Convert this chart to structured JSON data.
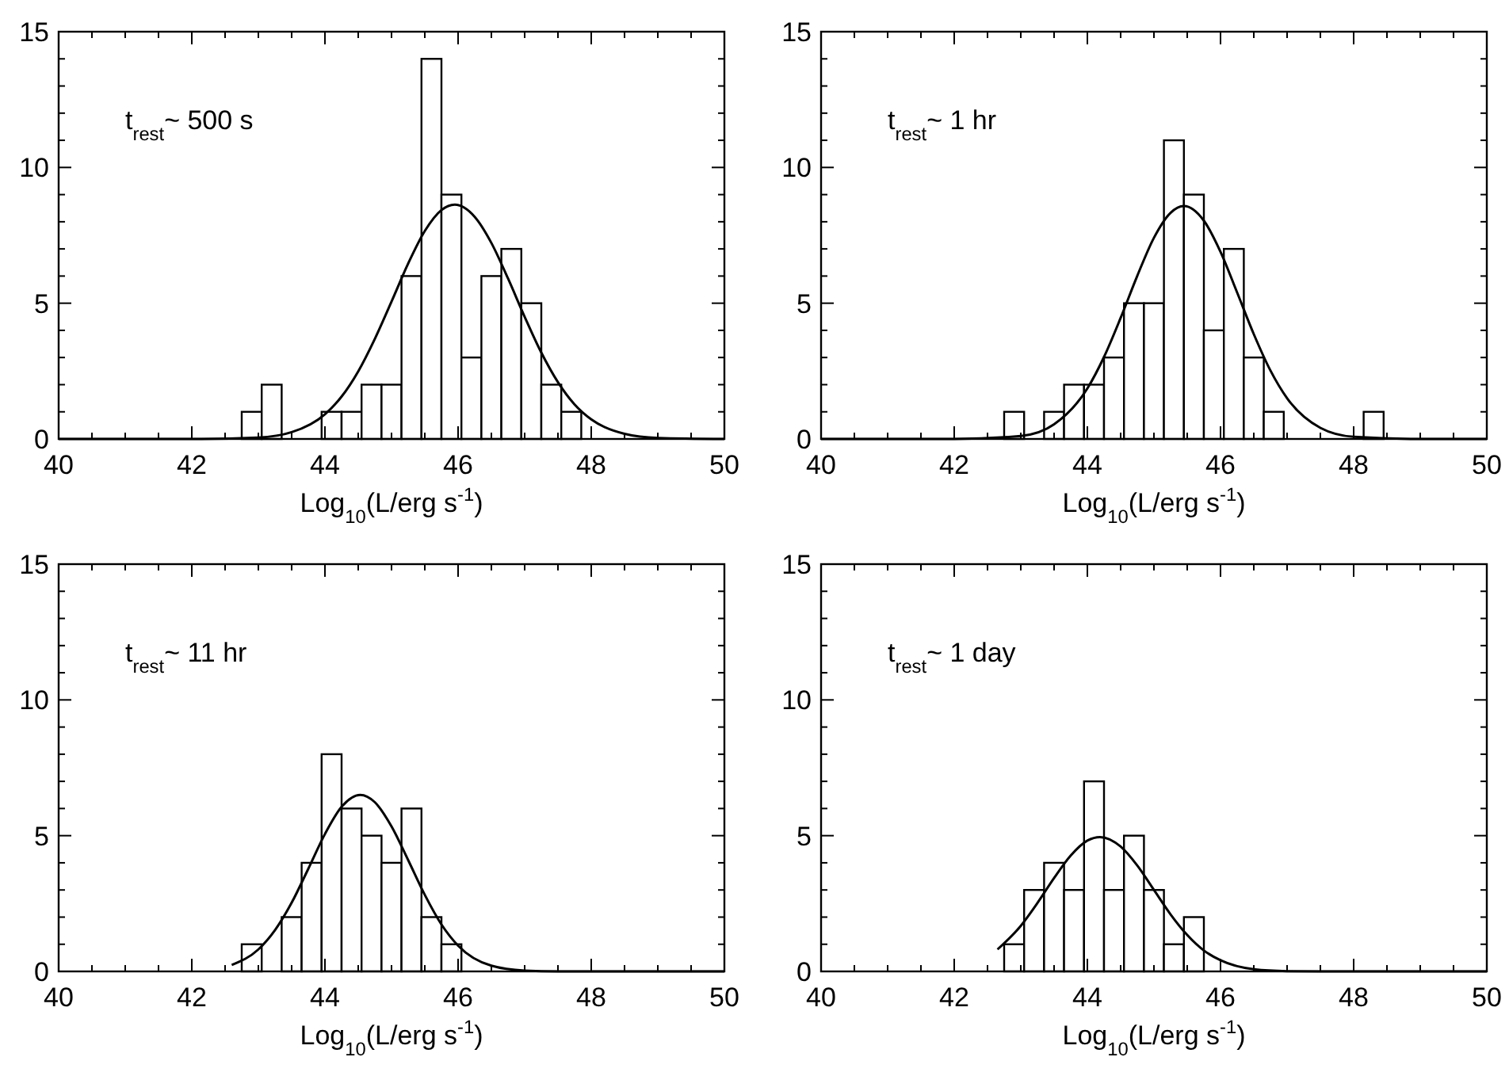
{
  "chart_data": [
    {
      "type": "histogram",
      "xlabel": "Log$_{10}$(L/erg s$^{-1}$)",
      "annotations": [
        "t$_{rest}$~ 500 s"
      ],
      "bins": [
        42.75,
        43.05,
        43.35,
        43.65,
        43.95,
        44.25,
        44.55,
        44.85,
        45.15,
        45.45,
        45.75,
        46.05,
        46.35,
        46.65,
        46.95,
        47.25,
        47.55,
        47.85
      ],
      "values": [
        1,
        2,
        0,
        0,
        1,
        1,
        2,
        2,
        6,
        14,
        9,
        3,
        6,
        7,
        5,
        2,
        1
      ],
      "series": [
        {
          "type": "line",
          "color": "#000000",
          "x": [
            40,
            42,
            43,
            43.5,
            44,
            44.25,
            44.5,
            44.75,
            45,
            45.25,
            45.5,
            45.75,
            45.95,
            46.25,
            46.5,
            46.75,
            47,
            47.25,
            47.5,
            47.75,
            48,
            48.5,
            49,
            50
          ],
          "values": [
            0,
            0,
            0.05,
            0.25,
            0.91,
            1.56,
            2.49,
            3.69,
            5.06,
            6.46,
            7.66,
            8.43,
            8.63,
            8.18,
            7.22,
            5.91,
            4.5,
            3.18,
            2.09,
            1.27,
            0.72,
            0.19,
            0.04,
            0
          ]
        }
      ],
      "xlim": [
        40,
        50
      ],
      "ylim": [
        0,
        15
      ],
      "xticks": [
        40,
        {
          "value": 40.5,
          "label": null
        },
        {
          "value": 41,
          "label": null
        },
        {
          "value": 41.5,
          "label": null
        },
        42,
        {
          "value": 42.5,
          "label": null
        },
        {
          "value": 43,
          "label": null
        },
        {
          "value": 43.5,
          "label": null
        },
        44,
        {
          "value": 44.5,
          "label": null
        },
        {
          "value": 45,
          "label": null
        },
        {
          "value": 45.5,
          "label": null
        },
        46,
        {
          "value": 46.5,
          "label": null
        },
        {
          "value": 47,
          "label": null
        },
        {
          "value": 47.5,
          "label": null
        },
        48,
        {
          "value": 48.5,
          "label": null
        },
        {
          "value": 49,
          "label": null
        },
        {
          "value": 49.5,
          "label": null
        },
        50
      ],
      "yticks": [
        0,
        {
          "value": 1,
          "label": null
        },
        {
          "value": 2,
          "label": null
        },
        {
          "value": 3,
          "label": null
        },
        {
          "value": 4,
          "label": null
        },
        5,
        {
          "value": 6,
          "label": null
        },
        {
          "value": 7,
          "label": null
        },
        {
          "value": 8,
          "label": null
        },
        {
          "value": 9,
          "label": null
        },
        10,
        {
          "value": 11,
          "label": null
        },
        {
          "value": 12,
          "label": null
        },
        {
          "value": 13,
          "label": null
        },
        {
          "value": 14,
          "label": null
        },
        15
      ]
    },
    {
      "type": "histogram",
      "xlabel": "Log$_{10}$(L/erg s$^{-1}$)",
      "annotations": [
        "t$_{rest}$~ 1 hr"
      ],
      "bins": [
        42.75,
        43.05,
        43.35,
        43.65,
        43.95,
        44.25,
        44.55,
        44.85,
        45.15,
        45.45,
        45.75,
        46.05,
        46.35,
        46.65,
        46.95,
        47.25,
        47.55,
        47.85,
        48.15,
        48.45
      ],
      "values": [
        1,
        0,
        1,
        2,
        2,
        3,
        5,
        5,
        11,
        9,
        4,
        7,
        3,
        1,
        0,
        0,
        0,
        0,
        1
      ],
      "series": [
        {
          "type": "line",
          "color": "#000000",
          "x": [
            40,
            42,
            43,
            43.5,
            44,
            44.25,
            44.5,
            44.75,
            45,
            45.25,
            45.45,
            45.75,
            46,
            46.25,
            46.5,
            46.75,
            47,
            47.5,
            48,
            49,
            50
          ],
          "values": [
            0,
            0,
            0.11,
            0.54,
            1.86,
            3.02,
            4.46,
            6.01,
            7.41,
            8.33,
            8.58,
            8.04,
            6.89,
            5.39,
            3.86,
            2.52,
            1.5,
            0.41,
            0.08,
            0,
            0
          ]
        }
      ],
      "xlim": [
        40,
        50
      ],
      "ylim": [
        0,
        15
      ],
      "xticks": [
        40,
        {
          "value": 40.5,
          "label": null
        },
        {
          "value": 41,
          "label": null
        },
        {
          "value": 41.5,
          "label": null
        },
        42,
        {
          "value": 42.5,
          "label": null
        },
        {
          "value": 43,
          "label": null
        },
        {
          "value": 43.5,
          "label": null
        },
        44,
        {
          "value": 44.5,
          "label": null
        },
        {
          "value": 45,
          "label": null
        },
        {
          "value": 45.5,
          "label": null
        },
        46,
        {
          "value": 46.5,
          "label": null
        },
        {
          "value": 47,
          "label": null
        },
        {
          "value": 47.5,
          "label": null
        },
        48,
        {
          "value": 48.5,
          "label": null
        },
        {
          "value": 49,
          "label": null
        },
        {
          "value": 49.5,
          "label": null
        },
        50
      ],
      "yticks": [
        0,
        {
          "value": 1,
          "label": null
        },
        {
          "value": 2,
          "label": null
        },
        {
          "value": 3,
          "label": null
        },
        {
          "value": 4,
          "label": null
        },
        5,
        {
          "value": 6,
          "label": null
        },
        {
          "value": 7,
          "label": null
        },
        {
          "value": 8,
          "label": null
        },
        {
          "value": 9,
          "label": null
        },
        10,
        {
          "value": 11,
          "label": null
        },
        {
          "value": 12,
          "label": null
        },
        {
          "value": 13,
          "label": null
        },
        {
          "value": 14,
          "label": null
        },
        15
      ]
    },
    {
      "type": "histogram",
      "xlabel": "Log$_{10}$(L/erg s$^{-1}$)",
      "annotations": [
        "t$_{rest}$~ 11 hr"
      ],
      "bins": [
        42.75,
        43.05,
        43.35,
        43.65,
        43.95,
        44.25,
        44.55,
        44.85,
        45.15,
        45.45,
        45.75,
        46.05
      ],
      "values": [
        1,
        0,
        2,
        4,
        8,
        6,
        5,
        4,
        6,
        2,
        1
      ],
      "series": [
        {
          "type": "line",
          "color": "#000000",
          "x": [
            42.6,
            43,
            43.25,
            43.5,
            43.75,
            44,
            44.25,
            44.53,
            44.75,
            45,
            45.25,
            45.5,
            45.75,
            46,
            46.5,
            47,
            47.5,
            48,
            49,
            50
          ],
          "values": [
            0.24,
            0.81,
            1.52,
            2.53,
            3.78,
            5.06,
            6.06,
            6.5,
            6.23,
            5.34,
            4.1,
            2.82,
            1.73,
            0.95,
            0.21,
            0.03,
            0,
            0,
            0,
            0
          ]
        }
      ],
      "xlim": [
        40,
        50
      ],
      "ylim": [
        0,
        15
      ],
      "xticks": [
        40,
        {
          "value": 40.5,
          "label": null
        },
        {
          "value": 41,
          "label": null
        },
        {
          "value": 41.5,
          "label": null
        },
        42,
        {
          "value": 42.5,
          "label": null
        },
        {
          "value": 43,
          "label": null
        },
        {
          "value": 43.5,
          "label": null
        },
        44,
        {
          "value": 44.5,
          "label": null
        },
        {
          "value": 45,
          "label": null
        },
        {
          "value": 45.5,
          "label": null
        },
        46,
        {
          "value": 46.5,
          "label": null
        },
        {
          "value": 47,
          "label": null
        },
        {
          "value": 47.5,
          "label": null
        },
        48,
        {
          "value": 48.5,
          "label": null
        },
        {
          "value": 49,
          "label": null
        },
        {
          "value": 49.5,
          "label": null
        },
        50
      ],
      "yticks": [
        0,
        {
          "value": 1,
          "label": null
        },
        {
          "value": 2,
          "label": null
        },
        {
          "value": 3,
          "label": null
        },
        {
          "value": 4,
          "label": null
        },
        5,
        {
          "value": 6,
          "label": null
        },
        {
          "value": 7,
          "label": null
        },
        {
          "value": 8,
          "label": null
        },
        {
          "value": 9,
          "label": null
        },
        10,
        {
          "value": 11,
          "label": null
        },
        {
          "value": 12,
          "label": null
        },
        {
          "value": 13,
          "label": null
        },
        {
          "value": 14,
          "label": null
        },
        15
      ]
    },
    {
      "type": "histogram",
      "xlabel": "Log$_{10}$(L/erg s$^{-1}$)",
      "annotations": [
        "t$_{rest}$~ 1 day"
      ],
      "bins": [
        42.75,
        43.05,
        43.35,
        43.65,
        43.95,
        44.25,
        44.55,
        44.85,
        45.15,
        45.45,
        45.75
      ],
      "values": [
        1,
        3,
        4,
        3,
        7,
        3,
        5,
        3,
        1,
        2
      ],
      "series": [
        {
          "type": "line",
          "color": "#000000",
          "x": [
            42.65,
            43,
            43.25,
            43.5,
            43.75,
            44,
            44.19,
            44.5,
            44.75,
            45,
            45.25,
            45.5,
            45.75,
            46,
            46.5,
            47,
            47.5,
            48,
            49,
            50
          ],
          "values": [
            0.81,
            1.68,
            2.52,
            3.44,
            4.27,
            4.82,
            4.95,
            4.6,
            3.9,
            3,
            2.1,
            1.34,
            0.77,
            0.41,
            0.08,
            0.01,
            0,
            0,
            0,
            0
          ]
        }
      ],
      "xlim": [
        40,
        50
      ],
      "ylim": [
        0,
        15
      ],
      "xticks": [
        40,
        {
          "value": 40.5,
          "label": null
        },
        {
          "value": 41,
          "label": null
        },
        {
          "value": 41.5,
          "label": null
        },
        42,
        {
          "value": 42.5,
          "label": null
        },
        {
          "value": 43,
          "label": null
        },
        {
          "value": 43.5,
          "label": null
        },
        44,
        {
          "value": 44.5,
          "label": null
        },
        {
          "value": 45,
          "label": null
        },
        {
          "value": 45.5,
          "label": null
        },
        46,
        {
          "value": 46.5,
          "label": null
        },
        {
          "value": 47,
          "label": null
        },
        {
          "value": 47.5,
          "label": null
        },
        48,
        {
          "value": 48.5,
          "label": null
        },
        {
          "value": 49,
          "label": null
        },
        {
          "value": 49.5,
          "label": null
        },
        50
      ],
      "yticks": [
        0,
        {
          "value": 1,
          "label": null
        },
        {
          "value": 2,
          "label": null
        },
        {
          "value": 3,
          "label": null
        },
        {
          "value": 4,
          "label": null
        },
        5,
        {
          "value": 6,
          "label": null
        },
        {
          "value": 7,
          "label": null
        },
        {
          "value": 8,
          "label": null
        },
        {
          "value": 9,
          "label": null
        },
        10,
        {
          "value": 11,
          "label": null
        },
        {
          "value": 12,
          "label": null
        },
        {
          "value": 13,
          "label": null
        },
        {
          "value": 14,
          "label": null
        },
        15
      ]
    }
  ]
}
